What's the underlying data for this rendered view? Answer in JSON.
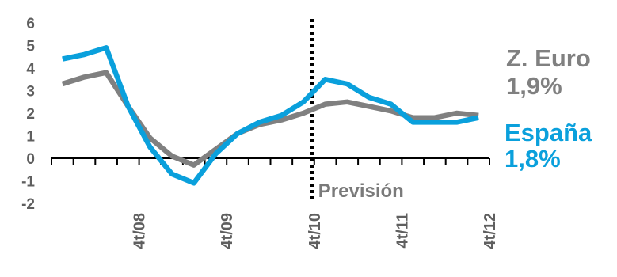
{
  "chart_data": {
    "type": "line",
    "x": [
      "1t/08",
      "2t/08",
      "3t/08",
      "4t/08",
      "1t/09",
      "2t/09",
      "3t/09",
      "4t/09",
      "1t/10",
      "2t/10",
      "3t/10",
      "4t/10",
      "1t/11",
      "2t/11",
      "3t/11",
      "4t/11",
      "1t/12",
      "2t/12",
      "3t/12",
      "4t/12"
    ],
    "x_tick_labels": [
      "4t/08",
      "4t/09",
      "4t/10",
      "4t/11",
      "4t/12"
    ],
    "x_tick_positions": [
      "4t/08",
      "4t/09",
      "4t/10",
      "4t/11",
      "4t/12"
    ],
    "ylim": [
      -2,
      6
    ],
    "y_ticks": [
      -2,
      -1,
      0,
      1,
      2,
      3,
      4,
      5,
      6
    ],
    "series": [
      {
        "name": "Z. Euro",
        "color": "#808080",
        "legend_value": "1,9%",
        "values": [
          3.3,
          3.6,
          3.8,
          2.3,
          0.9,
          0.1,
          -0.3,
          0.4,
          1.1,
          1.5,
          1.7,
          2.0,
          2.4,
          2.5,
          2.3,
          2.1,
          1.8,
          1.8,
          2.0,
          1.9
        ]
      },
      {
        "name": "España",
        "color": "#0aa0dc",
        "legend_value": "1,8%",
        "values": [
          4.4,
          4.6,
          4.9,
          2.3,
          0.5,
          -0.7,
          -1.1,
          0.2,
          1.1,
          1.6,
          1.9,
          2.5,
          3.5,
          3.3,
          2.7,
          2.4,
          1.6,
          1.6,
          1.6,
          1.8
        ]
      }
    ],
    "forecast_start": "1t/11",
    "forecast_label": "Previsión",
    "grid": false
  }
}
